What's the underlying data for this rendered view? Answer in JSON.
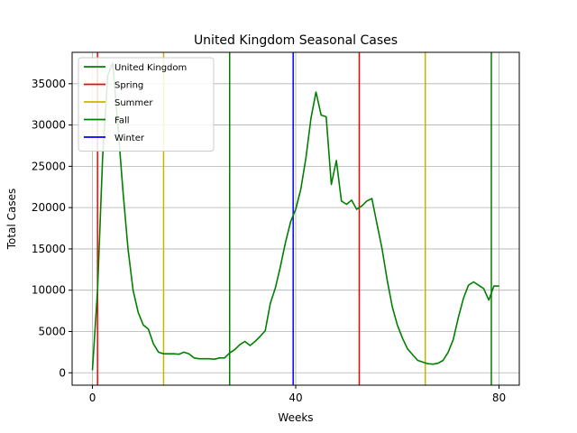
{
  "chart_data": {
    "type": "line",
    "title": "United Kingdom Seasonal Cases",
    "xlabel": "Weeks",
    "ylabel": "Total Cases",
    "xlim": [
      -4,
      84
    ],
    "ylim": [
      -1500,
      38800
    ],
    "xticks": [
      0,
      40,
      80
    ],
    "yticks": [
      0,
      5000,
      10000,
      15000,
      20000,
      25000,
      30000,
      35000
    ],
    "grid": "horizontal",
    "legend_position": "top-left",
    "series": [
      {
        "name": "United Kingdom",
        "color": "#008000",
        "x": [
          0,
          1,
          2,
          3,
          4,
          5,
          6,
          7,
          8,
          9,
          10,
          11,
          12,
          13,
          14,
          15,
          16,
          17,
          18,
          19,
          20,
          21,
          22,
          23,
          24,
          25,
          26,
          27,
          28,
          29,
          30,
          31,
          32,
          33,
          34,
          35,
          36,
          37,
          38,
          39,
          40,
          41,
          42,
          43,
          44,
          45,
          46,
          47,
          48,
          49,
          50,
          51,
          52,
          53,
          54,
          55,
          56,
          57,
          58,
          59,
          60,
          61,
          62,
          63,
          64,
          65,
          66,
          67,
          68,
          69,
          70,
          71,
          72,
          73,
          74,
          75,
          76,
          77,
          78,
          79,
          80
        ],
        "y": [
          300,
          10000,
          26000,
          36000,
          37500,
          30000,
          22000,
          15000,
          10000,
          7300,
          5800,
          5300,
          3500,
          2500,
          2300,
          2300,
          2300,
          2250,
          2500,
          2300,
          1800,
          1700,
          1700,
          1700,
          1650,
          1800,
          1800,
          2400,
          2800,
          3400,
          3800,
          3300,
          3800,
          4400,
          5100,
          8400,
          10300,
          12900,
          15800,
          18300,
          19800,
          22200,
          26000,
          30800,
          34000,
          31200,
          31000,
          22800,
          25700,
          20800,
          20400,
          20900,
          19800,
          20200,
          20800,
          21100,
          18000,
          15000,
          11200,
          8000,
          5800,
          4200,
          2900,
          2200,
          1500,
          1300,
          1100,
          1050,
          1150,
          1500,
          2500,
          4000,
          6700,
          9000,
          10600,
          11000,
          10600,
          10200,
          8800,
          10500,
          10500
        ]
      }
    ],
    "vlines": [
      {
        "name": "Spring",
        "color": "#ff0000",
        "x": [
          1,
          52.5
        ]
      },
      {
        "name": "Summer",
        "color": "#c8b400",
        "x": [
          14,
          65.5
        ]
      },
      {
        "name": "Fall",
        "color": "#008000",
        "x": [
          27,
          78.5
        ]
      },
      {
        "name": "Winter",
        "color": "#0000ff",
        "x": [
          39.5
        ]
      }
    ],
    "legend_entries": [
      {
        "name": "United Kingdom",
        "color": "#008000"
      },
      {
        "name": "Spring",
        "color": "#ff0000"
      },
      {
        "name": "Summer",
        "color": "#c8b400"
      },
      {
        "name": "Fall",
        "color": "#008000"
      },
      {
        "name": "Winter",
        "color": "#0000ff"
      }
    ]
  }
}
